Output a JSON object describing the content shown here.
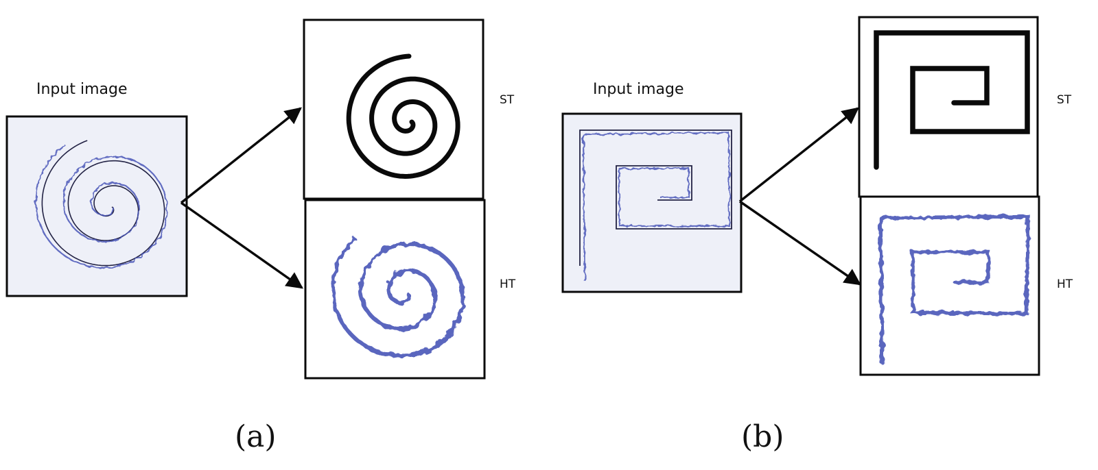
{
  "panels": [
    {
      "caption": "(a)",
      "input_label": "Input image",
      "outputs": [
        {
          "label": "ST"
        },
        {
          "label": "HT"
        }
      ]
    },
    {
      "caption": "(b)",
      "input_label": "Input image",
      "outputs": [
        {
          "label": "ST"
        },
        {
          "label": "HT"
        }
      ]
    }
  ],
  "colors": {
    "ink_blue": "#4a56b8",
    "stroke_black": "#0a0a0a",
    "paper_tint": "#eef0f8"
  }
}
